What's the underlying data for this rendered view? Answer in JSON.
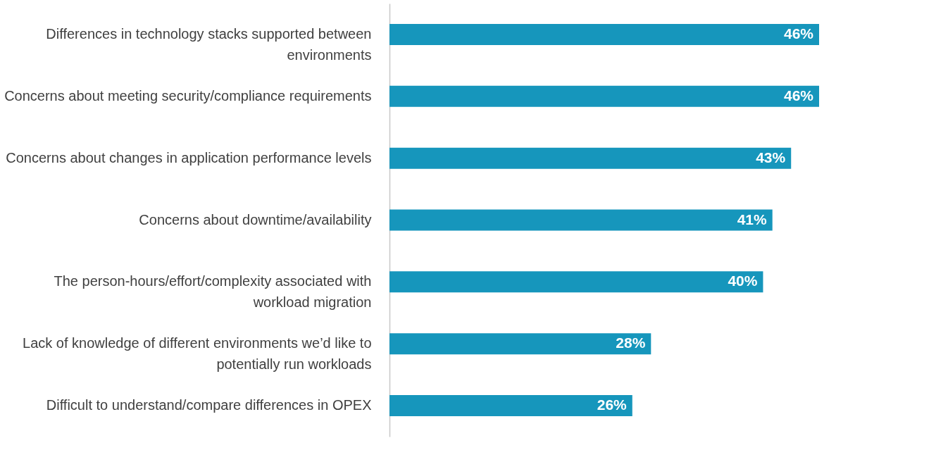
{
  "chart_data": {
    "type": "bar",
    "orientation": "horizontal",
    "categories": [
      "Differences in technology stacks supported between environments",
      "Concerns about meeting security/compliance requirements",
      "Concerns about changes in application performance levels",
      "Concerns about downtime/availability",
      "The person-hours/effort/complexity associated with workload migration",
      "Lack of knowledge of different environments we’d like to potentially run workloads",
      "Difficult to understand/compare differences in OPEX"
    ],
    "values": [
      46,
      46,
      43,
      41,
      40,
      28,
      26
    ],
    "value_labels": [
      "46%",
      "46%",
      "43%",
      "41%",
      "40%",
      "28%",
      "26%"
    ],
    "color": "#1696bc"
  }
}
